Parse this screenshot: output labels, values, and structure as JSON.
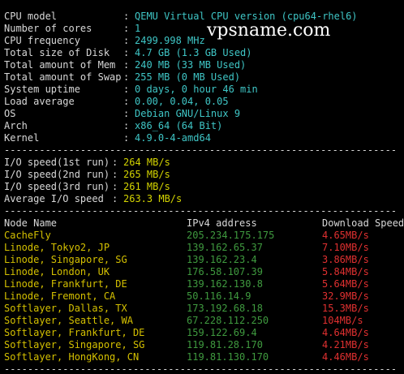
{
  "watermark": "vpsname.com",
  "delimiter": ":",
  "separator": "-------------------------------------------------------------------",
  "system_info": [
    {
      "label": "CPU model",
      "value": "QEMU Virtual CPU version (cpu64-rhel6)"
    },
    {
      "label": "Number of cores",
      "value": "1"
    },
    {
      "label": "CPU frequency",
      "value": "2499.998 MHz"
    },
    {
      "label": "Total size of Disk",
      "value": "4.7 GB (1.3 GB Used)"
    },
    {
      "label": "Total amount of Mem",
      "value": "240 MB (33 MB Used)"
    },
    {
      "label": "Total amount of Swap",
      "value": "255 MB (0 MB Used)"
    },
    {
      "label": "System uptime",
      "value": "0 days, 0 hour 46 min"
    },
    {
      "label": "Load average",
      "value": "0.00, 0.04, 0.05"
    },
    {
      "label": "OS",
      "value": "Debian GNU/Linux 9"
    },
    {
      "label": "Arch",
      "value": "x86_64 (64 Bit)"
    },
    {
      "label": "Kernel",
      "value": "4.9.0-4-amd64"
    }
  ],
  "io": [
    {
      "label": "I/O speed(1st run)",
      "value": "264 MB/s"
    },
    {
      "label": "I/O speed(2nd run)",
      "value": "265 MB/s"
    },
    {
      "label": "I/O speed(3rd run)",
      "value": "261 MB/s"
    },
    {
      "label": "Average I/O speed",
      "value": "263.3 MB/s"
    }
  ],
  "speed_table": {
    "header": [
      "Node Name",
      "IPv4 address",
      "Download Speed"
    ],
    "rows": [
      [
        "CacheFly",
        "205.234.175.175",
        "4.65MB/s"
      ],
      [
        "Linode, Tokyo2, JP",
        "139.162.65.37",
        "7.10MB/s"
      ],
      [
        "Linode, Singapore, SG",
        "139.162.23.4",
        "3.86MB/s"
      ],
      [
        "Linode, London, UK",
        "176.58.107.39",
        "5.84MB/s"
      ],
      [
        "Linode, Frankfurt, DE",
        "139.162.130.8",
        "5.64MB/s"
      ],
      [
        "Linode, Fremont, CA",
        "50.116.14.9",
        "32.9MB/s"
      ],
      [
        "Softlayer, Dallas, TX",
        "173.192.68.18",
        "15.3MB/s"
      ],
      [
        "Softlayer, Seattle, WA",
        "67.228.112.250",
        "104MB/s"
      ],
      [
        "Softlayer, Frankfurt, DE",
        "159.122.69.4",
        "4.64MB/s"
      ],
      [
        "Softlayer, Singapore, SG",
        "119.81.28.170",
        "4.21MB/s"
      ],
      [
        "Softlayer, HongKong, CN",
        "119.81.130.170",
        "4.46MB/s"
      ]
    ]
  }
}
